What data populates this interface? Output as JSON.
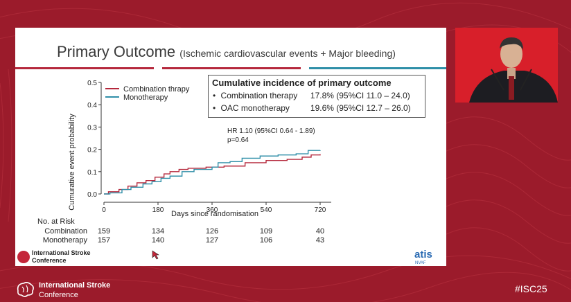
{
  "slide": {
    "title": "Primary Outcome",
    "subtitle": "(Ischemic cardiovascular events + Major bleeding)"
  },
  "summary_box": {
    "title": "Cumulative incidence of primary outcome",
    "rows": [
      {
        "bullet": "•",
        "label": "Combination therapy",
        "value": "17.8% (95%CI 11.0 – 24.0)"
      },
      {
        "bullet": "•",
        "label": "OAC monotherapy",
        "value": "19.6% (95%CI 12.7 – 26.0)"
      }
    ]
  },
  "chart_data": {
    "type": "line",
    "step": true,
    "title": "",
    "xlabel": "Days since randomisation",
    "ylabel": "Cumurative event probability",
    "xlim": [
      0,
      720
    ],
    "ylim": [
      0,
      0.5
    ],
    "xticks": [
      0,
      180,
      360,
      540,
      720
    ],
    "yticks": [
      0.0,
      0.1,
      0.2,
      0.3,
      0.4,
      0.5
    ],
    "ytick_labels": [
      "0.0",
      "0.1",
      "0.2",
      "0.3",
      "0.4",
      "0.5"
    ],
    "legend": [
      "Combination thrapy",
      "Monotherapy"
    ],
    "annotation_lines": [
      "HR 1.10 (95%CI 0.64 - 1.89)",
      "p=0.64"
    ],
    "series": [
      {
        "name": "Combination thrapy",
        "color": "#b5283c",
        "points": [
          [
            0,
            0
          ],
          [
            15,
            0.01
          ],
          [
            50,
            0.02
          ],
          [
            80,
            0.035
          ],
          [
            110,
            0.05
          ],
          [
            140,
            0.06
          ],
          [
            170,
            0.075
          ],
          [
            200,
            0.09
          ],
          [
            220,
            0.1
          ],
          [
            250,
            0.11
          ],
          [
            280,
            0.115
          ],
          [
            340,
            0.12
          ],
          [
            400,
            0.125
          ],
          [
            470,
            0.14
          ],
          [
            540,
            0.15
          ],
          [
            610,
            0.155
          ],
          [
            660,
            0.165
          ],
          [
            690,
            0.175
          ],
          [
            720,
            0.178
          ]
        ]
      },
      {
        "name": "Monotherapy",
        "color": "#2f8fa8",
        "points": [
          [
            0,
            0
          ],
          [
            20,
            0.005
          ],
          [
            60,
            0.02
          ],
          [
            90,
            0.03
          ],
          [
            130,
            0.045
          ],
          [
            160,
            0.055
          ],
          [
            190,
            0.07
          ],
          [
            220,
            0.08
          ],
          [
            260,
            0.1
          ],
          [
            300,
            0.11
          ],
          [
            360,
            0.12
          ],
          [
            380,
            0.14
          ],
          [
            420,
            0.145
          ],
          [
            460,
            0.16
          ],
          [
            520,
            0.17
          ],
          [
            580,
            0.175
          ],
          [
            640,
            0.18
          ],
          [
            680,
            0.195
          ],
          [
            720,
            0.196
          ]
        ]
      }
    ],
    "risk_table": {
      "header": "No. at Risk",
      "rows": [
        {
          "label": "Combination",
          "values": [
            "159",
            "134",
            "126",
            "109",
            "40"
          ]
        },
        {
          "label": "Monotherapy",
          "values": [
            "157",
            "140",
            "127",
            "106",
            "43"
          ]
        }
      ]
    }
  },
  "slide_logos": {
    "left_line1": "International Stroke",
    "left_line2": "Conference",
    "right_word": "atis",
    "right_sub": "NVAF"
  },
  "footer": {
    "logo_line1": "International Stroke",
    "logo_line2": "Conference",
    "hashtag": "#ISC25"
  },
  "colors": {
    "background": "#9b1b2b",
    "combination": "#b5283c",
    "monotherapy": "#2f8fa8"
  }
}
